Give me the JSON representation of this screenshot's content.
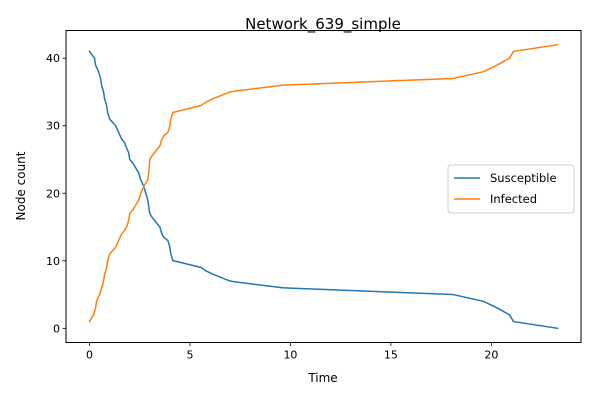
{
  "chart_data": {
    "type": "line",
    "title": "Network_639_simple",
    "xlabel": "Time",
    "ylabel": "Node count",
    "xlim": [
      -1.17,
      24.46
    ],
    "ylim": [
      -2.1,
      44.1
    ],
    "xticks": [
      0,
      5,
      10,
      15,
      20
    ],
    "yticks": [
      0,
      10,
      20,
      30,
      40
    ],
    "grid": false,
    "legend_position": "center-right",
    "series": [
      {
        "name": "Susceptible",
        "color": "#1f77b4",
        "x": [
          0,
          0.25,
          0.3,
          0.45,
          0.55,
          0.6,
          0.7,
          0.75,
          0.85,
          0.9,
          1.0,
          1.3,
          1.45,
          1.6,
          1.75,
          1.8,
          1.95,
          2.0,
          2.15,
          2.45,
          2.55,
          2.7,
          2.8,
          2.9,
          2.95,
          3.0,
          3.1,
          3.5,
          3.6,
          3.7,
          3.9,
          4.0,
          4.05,
          4.15,
          4.2,
          5.55,
          5.8,
          6.15,
          7.0,
          7.2,
          9.6,
          10.0,
          18.1,
          19.6,
          20.3,
          20.6,
          20.9,
          21.0,
          21.1,
          23.3
        ],
        "values": [
          41,
          40,
          39,
          38,
          37,
          36,
          35,
          34,
          33,
          32,
          31,
          30,
          29,
          28,
          27.5,
          27,
          26,
          25,
          24.5,
          23,
          22,
          21,
          20,
          19,
          18,
          17,
          16.5,
          15,
          14,
          13.5,
          13,
          12,
          11,
          10,
          10,
          9,
          8.5,
          8,
          7,
          6.9,
          6,
          5.95,
          5,
          4,
          3,
          2.5,
          2,
          1.5,
          1,
          0
        ]
      },
      {
        "name": "Infected",
        "color": "#ff7f0e",
        "x": [
          0,
          0.2,
          0.3,
          0.35,
          0.5,
          0.6,
          0.7,
          0.75,
          0.85,
          0.9,
          1.0,
          1.3,
          1.45,
          1.6,
          1.75,
          1.85,
          1.95,
          2.0,
          2.15,
          2.45,
          2.55,
          2.7,
          2.8,
          2.9,
          2.95,
          3.0,
          3.1,
          3.5,
          3.6,
          3.7,
          3.9,
          4.0,
          4.05,
          4.15,
          4.2,
          5.55,
          5.8,
          6.15,
          7.0,
          7.2,
          9.6,
          10.0,
          18.1,
          19.6,
          20.3,
          20.6,
          20.9,
          21.0,
          21.1,
          23.3
        ],
        "values": [
          1,
          2,
          3,
          4,
          5,
          6,
          7,
          8,
          9,
          10,
          11,
          12,
          13,
          14,
          14.5,
          15,
          16,
          17,
          17.5,
          19,
          20,
          21,
          21.5,
          22,
          23,
          25,
          25.5,
          27,
          28,
          28.5,
          29,
          30,
          31,
          32,
          32,
          33,
          33.5,
          34,
          35,
          35.1,
          36,
          36.05,
          37,
          38,
          39,
          39.5,
          40,
          40.5,
          41,
          42
        ]
      }
    ]
  }
}
